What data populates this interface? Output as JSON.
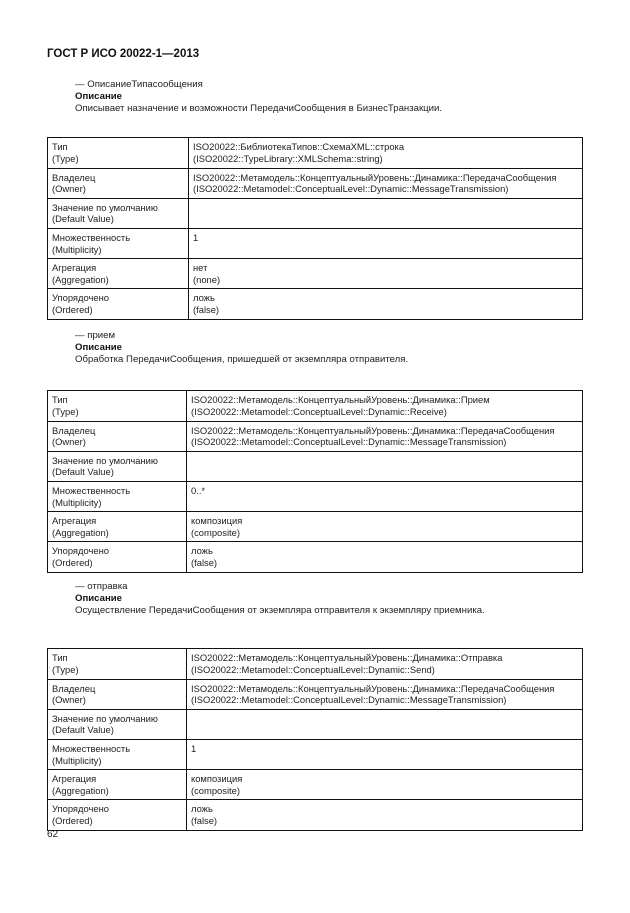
{
  "header": "ГОСТ Р ИСО 20022-1—2013",
  "page_number": "62",
  "sections": [
    {
      "name": "— ОписаниеТипасообщения",
      "heading": "Описание",
      "description": "Описывает назначение и возможности ПередачиСообщения в БизнесТранзакции.",
      "rows": [
        {
          "k1": "Тип",
          "k2": "(Type)",
          "v1": "ISO20022::БиблиотекаТипов::СхемаXML::строка",
          "v2": "(ISO20022::TypeLibrary::XMLSchema::string)"
        },
        {
          "k1": "Владелец",
          "k2": "(Owner)",
          "v1": "ISO20022::Метамодель::КонцептуальныйУровень::Динамика::ПередачаСообщения",
          "v2": "(ISO20022::Metamodel::ConceptualLevel::Dynamic::MessageTransmission)"
        },
        {
          "k1": "Значение по умолчанию",
          "k2": "(Default Value)",
          "v1": "",
          "v2": ""
        },
        {
          "k1": "Множественность",
          "k2": "(Multiplicity)",
          "v1": "1",
          "v2": ""
        },
        {
          "k1": "Агрегация",
          "k2": "(Aggregation)",
          "v1": "нет",
          "v2": "(none)"
        },
        {
          "k1": "Упорядочено",
          "k2": "(Ordered)",
          "v1": "ложь",
          "v2": "(false)"
        }
      ]
    },
    {
      "name": "— прием",
      "heading": "Описание",
      "description": "Обработка ПередачиСообщения, пришедшей от экземпляра отправителя.",
      "rows": [
        {
          "k1": "Тип",
          "k2": "(Type)",
          "v1": "ISO20022::Метамодель::КонцептуальныйУровень::Динамика::Прием",
          "v2": "(ISO20022::Metamodel::ConceptualLevel::Dynamic::Receive)"
        },
        {
          "k1": "Владелец",
          "k2": "(Owner)",
          "v1": "ISO20022::Метамодель::КонцептуальныйУровень::Динамика::ПередачаСообщения",
          "v2": "(ISO20022::Metamodel::ConceptualLevel::Dynamic::MessageTransmission)"
        },
        {
          "k1": "Значение по умолчанию",
          "k2": "(Default Value)",
          "v1": "",
          "v2": ""
        },
        {
          "k1": "Множественность",
          "k2": "(Multiplicity)",
          "v1": "0..*",
          "v2": ""
        },
        {
          "k1": "Агрегация",
          "k2": "(Aggregation)",
          "v1": "композиция",
          "v2": "(composite)"
        },
        {
          "k1": "Упорядочено",
          "k2": "(Ordered)",
          "v1": "ложь",
          "v2": "(false)"
        }
      ]
    },
    {
      "name": "— отправка",
      "heading": "Описание",
      "description": "Осуществление ПередачиСообщения от экземпляра отправителя к экземпляру приемника.",
      "rows": [
        {
          "k1": "Тип",
          "k2": "(Type)",
          "v1": "ISO20022::Метамодель::КонцептуальныйУровень::Динамика::Отправка",
          "v2": "(ISO20022::Metamodel::ConceptualLevel::Dynamic::Send)"
        },
        {
          "k1": "Владелец",
          "k2": "(Owner)",
          "v1": "ISO20022::Метамодель::КонцептуальныйУровень::Динамика::ПередачаСообщения",
          "v2": "(ISO20022::Metamodel::ConceptualLevel::Dynamic::MessageTransmission)"
        },
        {
          "k1": "Значение по умолчанию",
          "k2": "(Default Value)",
          "v1": "",
          "v2": ""
        },
        {
          "k1": "Множественность",
          "k2": "(Multiplicity)",
          "v1": "1",
          "v2": ""
        },
        {
          "k1": "Агрегация",
          "k2": "(Aggregation)",
          "v1": "композиция",
          "v2": "(composite)"
        },
        {
          "k1": "Упорядочено",
          "k2": "(Ordered)",
          "v1": "ложь",
          "v2": "(false)"
        }
      ]
    }
  ]
}
